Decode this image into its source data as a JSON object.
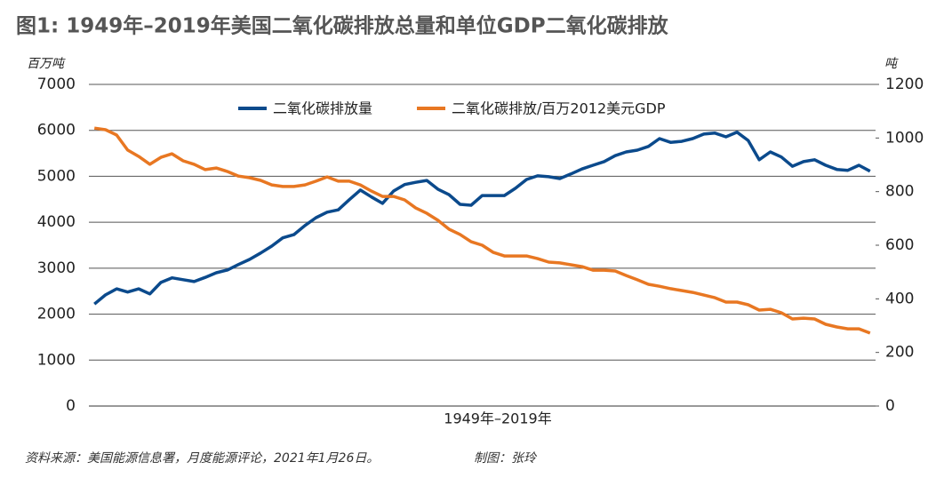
{
  "chart_data": {
    "type": "line",
    "title": "图1: 1949年–2019年美国二氧化碳排放总量和单位GDP二氧化碳排放",
    "y_unit": "百万吨",
    "y2_unit": "吨",
    "x_label": "1949年–2019年",
    "source": "资料来源：美国能源信息署，月度能源评论，2021年1月26日。",
    "credit": "制图：张玲",
    "ylim": [
      0,
      7000
    ],
    "yticks": [
      0,
      1000,
      2000,
      3000,
      4000,
      5000,
      6000,
      7000
    ],
    "y2lim": [
      0,
      1200
    ],
    "y2ticks": [
      0,
      200,
      400,
      600,
      800,
      1000,
      1200
    ],
    "grid": true,
    "legend": "top",
    "series": [
      {
        "name": "二氧化碳排放量",
        "color": "#0b4a8c",
        "values": [
          2220,
          2420,
          2550,
          2480,
          2550,
          2440,
          2690,
          2790,
          2750,
          2710,
          2800,
          2900,
          2960,
          3080,
          3190,
          3330,
          3480,
          3660,
          3730,
          3930,
          4100,
          4220,
          4270,
          4490,
          4700,
          4550,
          4410,
          4680,
          4820,
          4870,
          4910,
          4720,
          4600,
          4390,
          4370,
          4580,
          4580,
          4580,
          4740,
          4930,
          5010,
          4990,
          4950,
          5050,
          5160,
          5240,
          5320,
          5450,
          5530,
          5570,
          5650,
          5820,
          5740,
          5760,
          5820,
          5920,
          5940,
          5860,
          5960,
          5780,
          5360,
          5530,
          5420,
          5220,
          5320,
          5360,
          5240,
          5150,
          5130,
          5240,
          5110
        ]
      },
      {
        "name": "二氧化碳排放/百万2012美元GDP",
        "color": "#e87722",
        "axis": "y2",
        "values": [
          1037,
          1031,
          1011,
          955,
          931,
          902,
          928,
          941,
          915,
          902,
          882,
          888,
          875,
          858,
          852,
          842,
          825,
          819,
          819,
          825,
          839,
          855,
          839,
          839,
          825,
          802,
          782,
          782,
          769,
          739,
          719,
          693,
          660,
          640,
          613,
          600,
          573,
          560,
          560,
          560,
          550,
          537,
          534,
          527,
          520,
          507,
          507,
          504,
          487,
          471,
          454,
          447,
          438,
          431,
          424,
          414,
          404,
          388,
          388,
          378,
          358,
          361,
          348,
          325,
          328,
          325,
          305,
          295,
          288,
          288,
          272
        ]
      }
    ]
  }
}
